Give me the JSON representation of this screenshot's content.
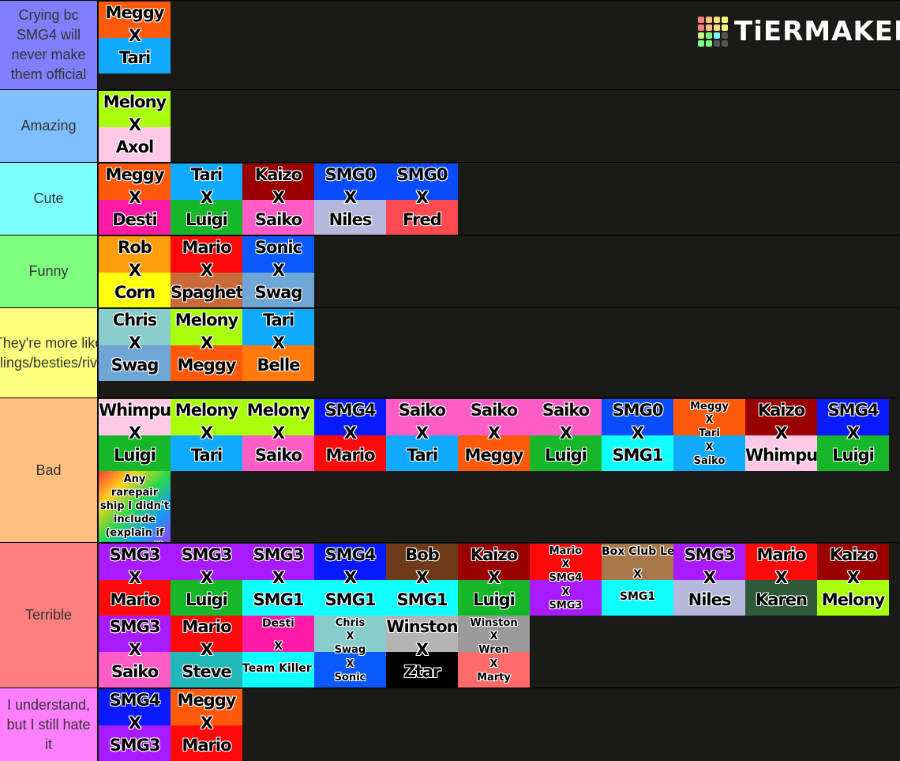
{
  "brand": {
    "name": "TiERMAKER",
    "grid_colors": [
      "#ff7f7f",
      "#ffbf7f",
      "#ffdf7f",
      "#ffff7f",
      "#ff7f7f",
      "#ffbf7f",
      "#ffdf7f",
      "#ffff7f",
      "#bfff7f",
      "#7fff7f",
      "#7fffff",
      "#555555",
      "#7fff7f",
      "#7fff7f",
      "#555555",
      "#555555"
    ]
  },
  "tiers": [
    {
      "label": "Crying bc SMG4 will never make them official",
      "color": "#7f7fff",
      "items": [
        {
          "lines": [
            "Meggy",
            "X",
            "Tari"
          ],
          "colors": [
            "#ff5a0a",
            "#10aaff"
          ]
        }
      ]
    },
    {
      "label": "Amazing",
      "color": "#7fbfff",
      "items": [
        {
          "lines": [
            "Melony",
            "X",
            "Axol"
          ],
          "colors": [
            "#a8ff0a",
            "#ffc8e6"
          ]
        }
      ]
    },
    {
      "label": "Cute",
      "color": "#7fffff",
      "items": [
        {
          "lines": [
            "Meggy",
            "X",
            "Desti"
          ],
          "colors": [
            "#ff5a0a",
            "#ff1aa8"
          ]
        },
        {
          "lines": [
            "Tari",
            "X",
            "Luigi"
          ],
          "colors": [
            "#10aaff",
            "#16b82a"
          ]
        },
        {
          "lines": [
            "Kaizo",
            "X",
            "Saiko"
          ],
          "colors": [
            "#9a0000",
            "#ff5cc6"
          ]
        },
        {
          "lines": [
            "SMG0",
            "X",
            "Niles"
          ],
          "colors": [
            "#0a4cff",
            "#b4b8dc"
          ]
        },
        {
          "lines": [
            "SMG0",
            "X",
            "Fred"
          ],
          "colors": [
            "#0a4cff",
            "#ff4a52"
          ]
        }
      ]
    },
    {
      "label": "Funny",
      "color": "#7fff7f",
      "items": [
        {
          "lines": [
            "Rob",
            "X",
            "Corn"
          ],
          "colors": [
            "#ff9e0a",
            "#ffff0a"
          ]
        },
        {
          "lines": [
            "Mario",
            "X",
            "Spaghetti"
          ],
          "colors": [
            "#ff0a0a",
            "#c86a3a"
          ]
        },
        {
          "lines": [
            "Sonic",
            "X",
            "Swag"
          ],
          "colors": [
            "#0a5aff",
            "#6ea6d6"
          ]
        }
      ]
    },
    {
      "label": "They're more like siblings/besties/rivals",
      "color": "#ffff7f",
      "items": [
        {
          "lines": [
            "Chris",
            "X",
            "Swag"
          ],
          "colors": [
            "#88cccc",
            "#6ea6d6"
          ]
        },
        {
          "lines": [
            "Melony",
            "X",
            "Meggy"
          ],
          "colors": [
            "#a8ff0a",
            "#ff5a0a"
          ]
        },
        {
          "lines": [
            "Tari",
            "X",
            "Belle"
          ],
          "colors": [
            "#10aaff",
            "#ff7a0a"
          ]
        }
      ]
    },
    {
      "label": "Bad",
      "color": "#ffbf7f",
      "items": [
        {
          "lines": [
            "Whimpu",
            "X",
            "Luigi"
          ],
          "colors": [
            "#ffc8e6",
            "#16b82a"
          ]
        },
        {
          "lines": [
            "Melony",
            "X",
            "Tari"
          ],
          "colors": [
            "#a8ff0a",
            "#10aaff"
          ]
        },
        {
          "lines": [
            "Melony",
            "X",
            "Saiko"
          ],
          "colors": [
            "#a8ff0a",
            "#ff5cc6"
          ]
        },
        {
          "lines": [
            "SMG4",
            "X",
            "Mario"
          ],
          "colors": [
            "#0a1aff",
            "#ff0a0a"
          ]
        },
        {
          "lines": [
            "Saiko",
            "X",
            "Tari"
          ],
          "colors": [
            "#ff5cc6",
            "#10aaff"
          ]
        },
        {
          "lines": [
            "Saiko",
            "X",
            "Meggy"
          ],
          "colors": [
            "#ff5cc6",
            "#ff5a0a"
          ]
        },
        {
          "lines": [
            "Saiko",
            "X",
            "Luigi"
          ],
          "colors": [
            "#ff5cc6",
            "#16b82a"
          ]
        },
        {
          "lines": [
            "SMG0",
            "X",
            "SMG1"
          ],
          "colors": [
            "#0a4cff",
            "#10ffff"
          ]
        },
        {
          "lines": [
            "Meggy",
            "X",
            "Tari",
            "X",
            "Saiko"
          ],
          "colors": [
            "#ff5a0a",
            "#10aaff"
          ],
          "small": true
        },
        {
          "lines": [
            "Kaizo",
            "X",
            "Whimpu"
          ],
          "colors": [
            "#9a0000",
            "#ffc8e6"
          ]
        },
        {
          "lines": [
            "SMG4",
            "X",
            "Luigi"
          ],
          "colors": [
            "#0a1aff",
            "#16b82a"
          ]
        },
        {
          "note": "Any rarepair ship I didn't include (explain if you want)",
          "colors": [
            "#ff3a3a",
            "#9a3aff"
          ]
        }
      ]
    },
    {
      "label": "Terrible",
      "color": "#ff7f7f",
      "items": [
        {
          "lines": [
            "SMG3",
            "X",
            "Mario"
          ],
          "colors": [
            "#a81aff",
            "#ff0a0a"
          ]
        },
        {
          "lines": [
            "SMG3",
            "X",
            "Luigi"
          ],
          "colors": [
            "#a81aff",
            "#16b82a"
          ]
        },
        {
          "lines": [
            "SMG3",
            "X",
            "SMG1"
          ],
          "colors": [
            "#a81aff",
            "#10ffff"
          ]
        },
        {
          "lines": [
            "SMG4",
            "X",
            "SMG1"
          ],
          "colors": [
            "#0a1aff",
            "#10ffff"
          ]
        },
        {
          "lines": [
            "Bob",
            "X",
            "SMG1"
          ],
          "colors": [
            "#6e3a1a",
            "#10ffff"
          ]
        },
        {
          "lines": [
            "Kaizo",
            "X",
            "Luigi"
          ],
          "colors": [
            "#9a0000",
            "#16b82a"
          ]
        },
        {
          "lines": [
            "Mario",
            "X",
            "SMG4",
            "X",
            "SMG3"
          ],
          "colors": [
            "#ff0a0a",
            "#a81aff"
          ],
          "small": true
        },
        {
          "lines": [
            "Box Club Leader",
            "X",
            "SMG1"
          ],
          "colors": [
            "#a8784a",
            "#10ffff"
          ],
          "small": true
        },
        {
          "lines": [
            "SMG3",
            "X",
            "Niles"
          ],
          "colors": [
            "#a81aff",
            "#b4b8dc"
          ]
        },
        {
          "lines": [
            "Mario",
            "X",
            "Karen"
          ],
          "colors": [
            "#ff0a0a",
            "#2e5a3a"
          ]
        },
        {
          "lines": [
            "Kaizo",
            "X",
            "Melony"
          ],
          "colors": [
            "#9a0000",
            "#a8ff0a"
          ]
        },
        {
          "lines": [
            "SMG3",
            "X",
            "Saiko"
          ],
          "colors": [
            "#a81aff",
            "#ff5cc6"
          ]
        },
        {
          "lines": [
            "Mario",
            "X",
            "Steve"
          ],
          "colors": [
            "#ff0a0a",
            "#20b8b8"
          ]
        },
        {
          "lines": [
            "Desti",
            "X",
            "Team Killer Ink Leader (Meggy's Destiny)"
          ],
          "colors": [
            "#ff1aa8",
            "#10ffff"
          ],
          "small": true
        },
        {
          "lines": [
            "Chris",
            "X",
            "Swag",
            "X",
            "Sonic"
          ],
          "colors": [
            "#88cccc",
            "#0a5aff"
          ],
          "small": true
        },
        {
          "lines": [
            "Winston",
            "X",
            "Ztar"
          ],
          "colors": [
            "#b4b4b4",
            "#000000"
          ]
        },
        {
          "lines": [
            "Winston",
            "X",
            "Wren",
            "X",
            "Marty"
          ],
          "colors": [
            "#9a9a9a",
            "#ff6a6a"
          ],
          "small": true
        }
      ]
    },
    {
      "label": "I understand, but I still hate it",
      "color": "#ff7fff",
      "items": [
        {
          "lines": [
            "SMG4",
            "X",
            "SMG3"
          ],
          "colors": [
            "#0a1aff",
            "#a81aff"
          ]
        },
        {
          "lines": [
            "Meggy",
            "X",
            "Mario"
          ],
          "colors": [
            "#ff5a0a",
            "#ff0a0a"
          ]
        }
      ]
    }
  ]
}
